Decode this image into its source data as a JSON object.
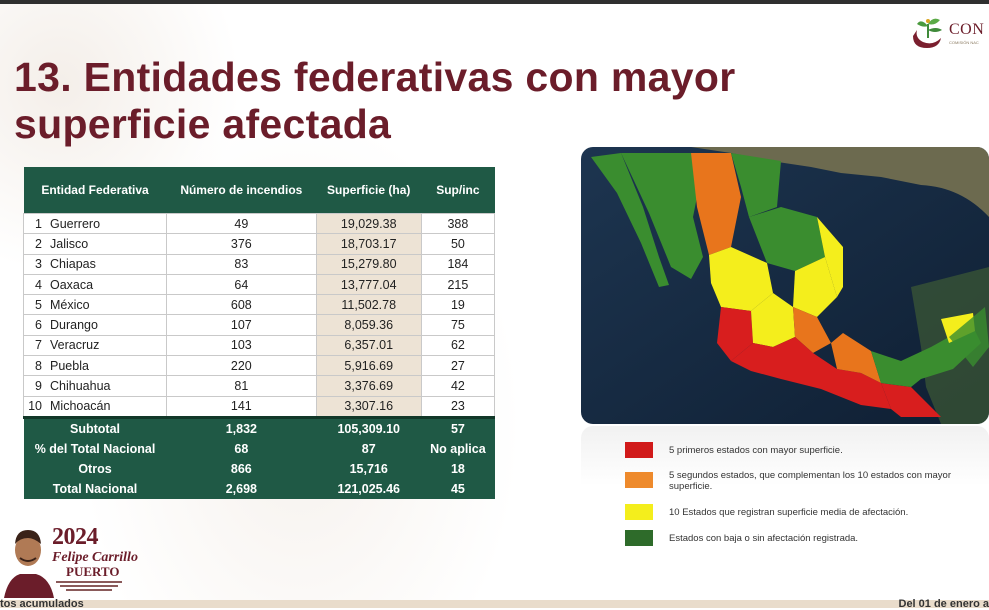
{
  "logo": {
    "text": "CON",
    "sub": "COMISIÓN NAC"
  },
  "title": "13. Entidades federativas con mayor superficie afectada",
  "table": {
    "headers": [
      "Entidad Federativa",
      "Número de incendios",
      "Superficie (ha)",
      "Sup/inc"
    ],
    "rows": [
      {
        "rank": "1",
        "state": "Guerrero",
        "fires": "49",
        "surface": "19,029.38",
        "ratio": "388"
      },
      {
        "rank": "2",
        "state": "Jalisco",
        "fires": "376",
        "surface": "18,703.17",
        "ratio": "50"
      },
      {
        "rank": "3",
        "state": "Chiapas",
        "fires": "83",
        "surface": "15,279.80",
        "ratio": "184"
      },
      {
        "rank": "4",
        "state": "Oaxaca",
        "fires": "64",
        "surface": "13,777.04",
        "ratio": "215"
      },
      {
        "rank": "5",
        "state": "México",
        "fires": "608",
        "surface": "11,502.78",
        "ratio": "19"
      },
      {
        "rank": "6",
        "state": "Durango",
        "fires": "107",
        "surface": "8,059.36",
        "ratio": "75"
      },
      {
        "rank": "7",
        "state": "Veracruz",
        "fires": "103",
        "surface": "6,357.01",
        "ratio": "62"
      },
      {
        "rank": "8",
        "state": "Puebla",
        "fires": "220",
        "surface": "5,916.69",
        "ratio": "27"
      },
      {
        "rank": "9",
        "state": "Chihuahua",
        "fires": "81",
        "surface": "3,376.69",
        "ratio": "42"
      },
      {
        "rank": "10",
        "state": "Michoacán",
        "fires": "141",
        "surface": "3,307.16",
        "ratio": "23"
      }
    ],
    "summary": [
      {
        "label": "Subtotal",
        "fires": "1,832",
        "surface": "105,309.10",
        "ratio": "57"
      },
      {
        "label": "% del Total Nacional",
        "fires": "68",
        "surface": "87",
        "ratio": "No aplica"
      },
      {
        "label": "Otros",
        "fires": "866",
        "surface": "15,716",
        "ratio": "18"
      },
      {
        "label": "Total Nacional",
        "fires": "2,698",
        "surface": "121,025.46",
        "ratio": "45"
      }
    ]
  },
  "legend": [
    {
      "color": "#d11a1a",
      "label": "5 primeros estados con mayor superficie."
    },
    {
      "color": "#ee8a2c",
      "label": "5 segundos estados, que complementan los 10 estados con mayor superficie."
    },
    {
      "color": "#f4ee1c",
      "label": "10 Estados que registran superficie media de afectación."
    },
    {
      "color": "#2e6b2a",
      "label": "Estados con baja o sin afectación registrada."
    }
  ],
  "badge": {
    "year": "2024",
    "name_line1": "Felipe Carrillo",
    "name_line2": "PUERTO"
  },
  "footer": {
    "left": "tos acumulados",
    "right": "Del 01 de enero a"
  },
  "colors": {
    "brand": "#6b1d2a",
    "table_green": "#1f5945",
    "surface_col": "#ede3d5"
  }
}
